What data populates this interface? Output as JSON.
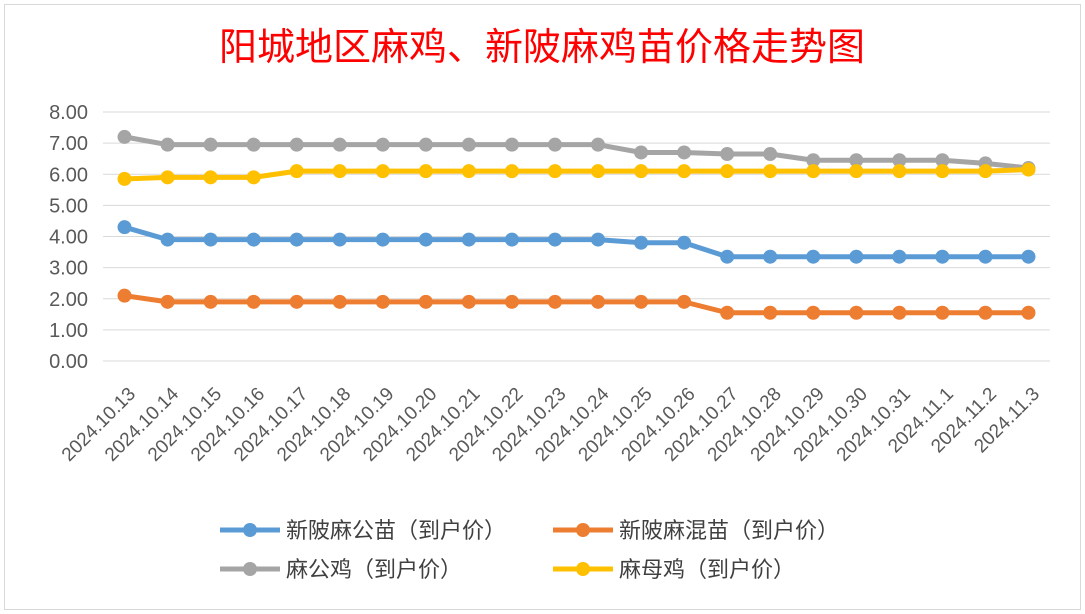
{
  "chart_data": {
    "type": "line",
    "title": "阳城地区麻鸡、新陂麻鸡苗价格走势图",
    "xlabel": "",
    "ylabel": "",
    "ylim": [
      0,
      8
    ],
    "yticks": [
      "0.00",
      "1.00",
      "2.00",
      "3.00",
      "4.00",
      "5.00",
      "6.00",
      "7.00",
      "8.00"
    ],
    "grid": true,
    "legend_position": "bottom",
    "categories": [
      "2024.10.13",
      "2024.10.14",
      "2024.10.15",
      "2024.10.16",
      "2024.10.17",
      "2024.10.18",
      "2024.10.19",
      "2024.10.20",
      "2024.10.21",
      "2024.10.22",
      "2024.10.23",
      "2024.10.24",
      "2024.10.25",
      "2024.10.26",
      "2024.10.27",
      "2024.10.28",
      "2024.10.29",
      "2024.10.30",
      "2024.10.31",
      "2024.11.1",
      "2024.11.2",
      "2024.11.3"
    ],
    "series": [
      {
        "name": "新陂麻公苗（到户价）",
        "color": "#5b9bd5",
        "values": [
          4.3,
          3.9,
          3.9,
          3.9,
          3.9,
          3.9,
          3.9,
          3.9,
          3.9,
          3.9,
          3.9,
          3.9,
          3.8,
          3.8,
          3.35,
          3.35,
          3.35,
          3.35,
          3.35,
          3.35,
          3.35,
          3.35
        ]
      },
      {
        "name": "新陂麻混苗（到户价）",
        "color": "#ed7d31",
        "values": [
          2.1,
          1.9,
          1.9,
          1.9,
          1.9,
          1.9,
          1.9,
          1.9,
          1.9,
          1.9,
          1.9,
          1.9,
          1.9,
          1.9,
          1.55,
          1.55,
          1.55,
          1.55,
          1.55,
          1.55,
          1.55,
          1.55
        ]
      },
      {
        "name": "麻公鸡（到户价）",
        "color": "#a5a5a5",
        "values": [
          7.2,
          6.95,
          6.95,
          6.95,
          6.95,
          6.95,
          6.95,
          6.95,
          6.95,
          6.95,
          6.95,
          6.95,
          6.7,
          6.7,
          6.65,
          6.65,
          6.45,
          6.45,
          6.45,
          6.45,
          6.35,
          6.2
        ]
      },
      {
        "name": "麻母鸡（到户价）",
        "color": "#ffc000",
        "values": [
          5.85,
          5.9,
          5.9,
          5.9,
          6.1,
          6.1,
          6.1,
          6.1,
          6.1,
          6.1,
          6.1,
          6.1,
          6.1,
          6.1,
          6.1,
          6.1,
          6.1,
          6.1,
          6.1,
          6.1,
          6.1,
          6.15
        ]
      }
    ]
  }
}
